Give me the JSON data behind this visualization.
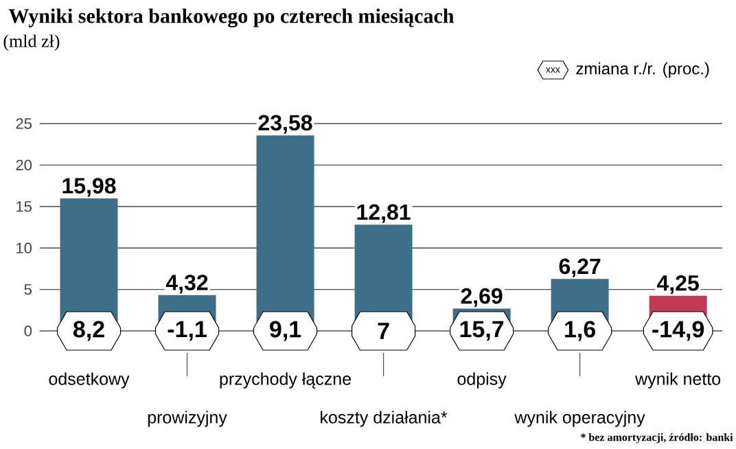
{
  "chart_data": {
    "type": "bar",
    "title": "Wyniki sektora bankowego po czterech miesiącach",
    "subtitle": "(mld zł)",
    "categories": [
      "odsetkowy",
      "prowizyjny",
      "przychody łączne",
      "koszty działania*",
      "odpisy",
      "wynik operacyjny",
      "wynik netto"
    ],
    "values": [
      15.98,
      4.32,
      23.58,
      12.81,
      2.69,
      6.27,
      4.25
    ],
    "value_labels": [
      "15,98",
      "4,32",
      "23,58",
      "12,81",
      "2,69",
      "6,27",
      "4,25"
    ],
    "colors": [
      "#3e6f89",
      "#3e6f89",
      "#3e6f89",
      "#3e6f89",
      "#3e6f89",
      "#3e6f89",
      "#c23a58"
    ],
    "ylim": [
      0,
      25
    ],
    "yticks": [
      0,
      5,
      10,
      15,
      20,
      25
    ],
    "grid": "y",
    "annotations": [
      {
        "text": "8,2",
        "x": "odsetkowy",
        "y": 0
      },
      {
        "text": "-1,1",
        "x": "prowizyjny",
        "y": 0
      },
      {
        "text": "9,1",
        "x": "przychody łączne",
        "y": 0
      },
      {
        "text": "7",
        "x": "koszty działania*",
        "y": 0
      },
      {
        "text": "15,7",
        "x": "odpisy",
        "y": 0
      },
      {
        "text": "1,6",
        "x": "wynik operacyjny",
        "y": 0
      },
      {
        "text": "-14,9",
        "x": "wynik netto",
        "y": 0
      },
      "xxx",
      "zmiana r./r. (proc.)",
      "* bez amortyzacji, źródło: banki"
    ]
  }
}
